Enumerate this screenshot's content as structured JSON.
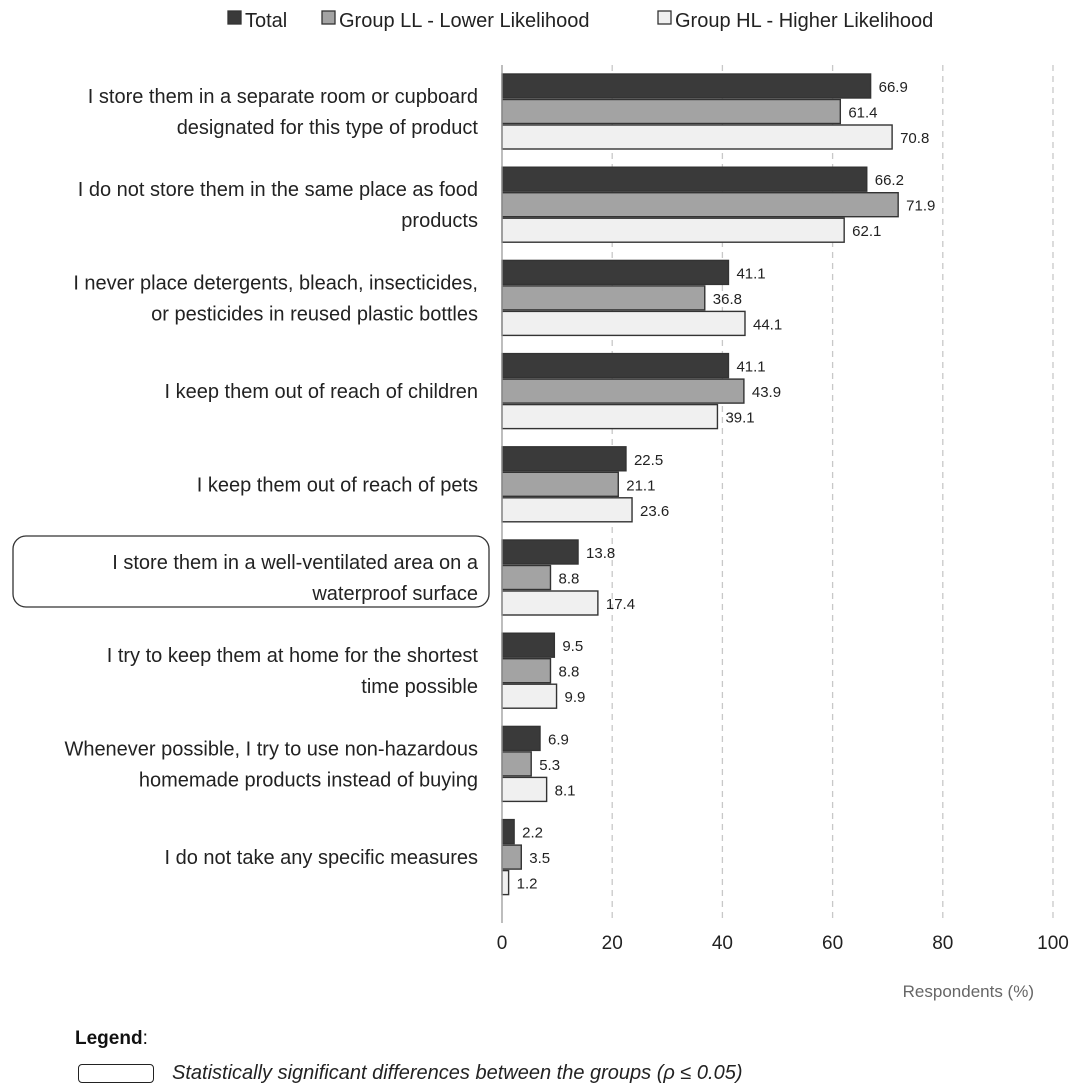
{
  "chart_data": {
    "type": "bar",
    "orientation": "horizontal",
    "legend_position": "top",
    "grid": true,
    "xlabel": "Respondents (%)",
    "xlim": [
      0,
      100
    ],
    "xticks": [
      "0",
      "20",
      "40",
      "60",
      "80",
      "100"
    ],
    "categories": [
      [
        "I store them in a separate room or cupboard",
        "designated for this type of product"
      ],
      [
        "I do not store them in the same place as food",
        "products"
      ],
      [
        "I never place detergents, bleach, insecticides,",
        "or pesticides in reused plastic bottles"
      ],
      [
        "I keep them out of reach of children"
      ],
      [
        "I keep them out of reach of pets"
      ],
      [
        "I store them in a well-ventilated area on a",
        "waterproof surface"
      ],
      [
        "I try to keep them at home for the shortest",
        "time possible"
      ],
      [
        "Whenever possible, I try to use non-hazardous",
        "homemade products instead of buying"
      ],
      [
        "I do not take any specific measures"
      ]
    ],
    "highlighted_categories": [
      5
    ],
    "series": [
      {
        "name": "Total",
        "color": "#3a3a3a",
        "values": [
          66.9,
          66.2,
          41.1,
          41.1,
          22.5,
          13.8,
          9.5,
          6.9,
          2.2
        ],
        "labels": [
          "66.9",
          "66.2",
          "41.1",
          "41.1",
          "22.5",
          "13.8",
          "9.5",
          "6.9",
          "2.2"
        ]
      },
      {
        "name": "Group LL - Lower Likelihood",
        "color": "#a3a3a3",
        "values": [
          61.4,
          71.9,
          36.8,
          43.9,
          21.1,
          8.8,
          8.8,
          5.3,
          3.5
        ],
        "labels": [
          "61.4",
          "71.9",
          "36.8",
          "43.9",
          "21.1",
          "8.8",
          "8.8",
          "5.3",
          "3.5"
        ]
      },
      {
        "name": "Group HL - Higher Likelihood",
        "color": "#f0f0f0",
        "values": [
          70.8,
          62.1,
          44.1,
          39.1,
          23.6,
          17.4,
          9.9,
          8.1,
          1.2
        ],
        "labels": [
          "70.8",
          "62.1",
          "44.1",
          "39.1",
          "23.6",
          "17.4",
          "9.9",
          "8.1",
          "1.2"
        ]
      }
    ]
  },
  "legend_note": {
    "title": "Legend",
    "colon": ":",
    "text": "Statistically significant differences between the groups (ρ ≤ 0.05)"
  }
}
